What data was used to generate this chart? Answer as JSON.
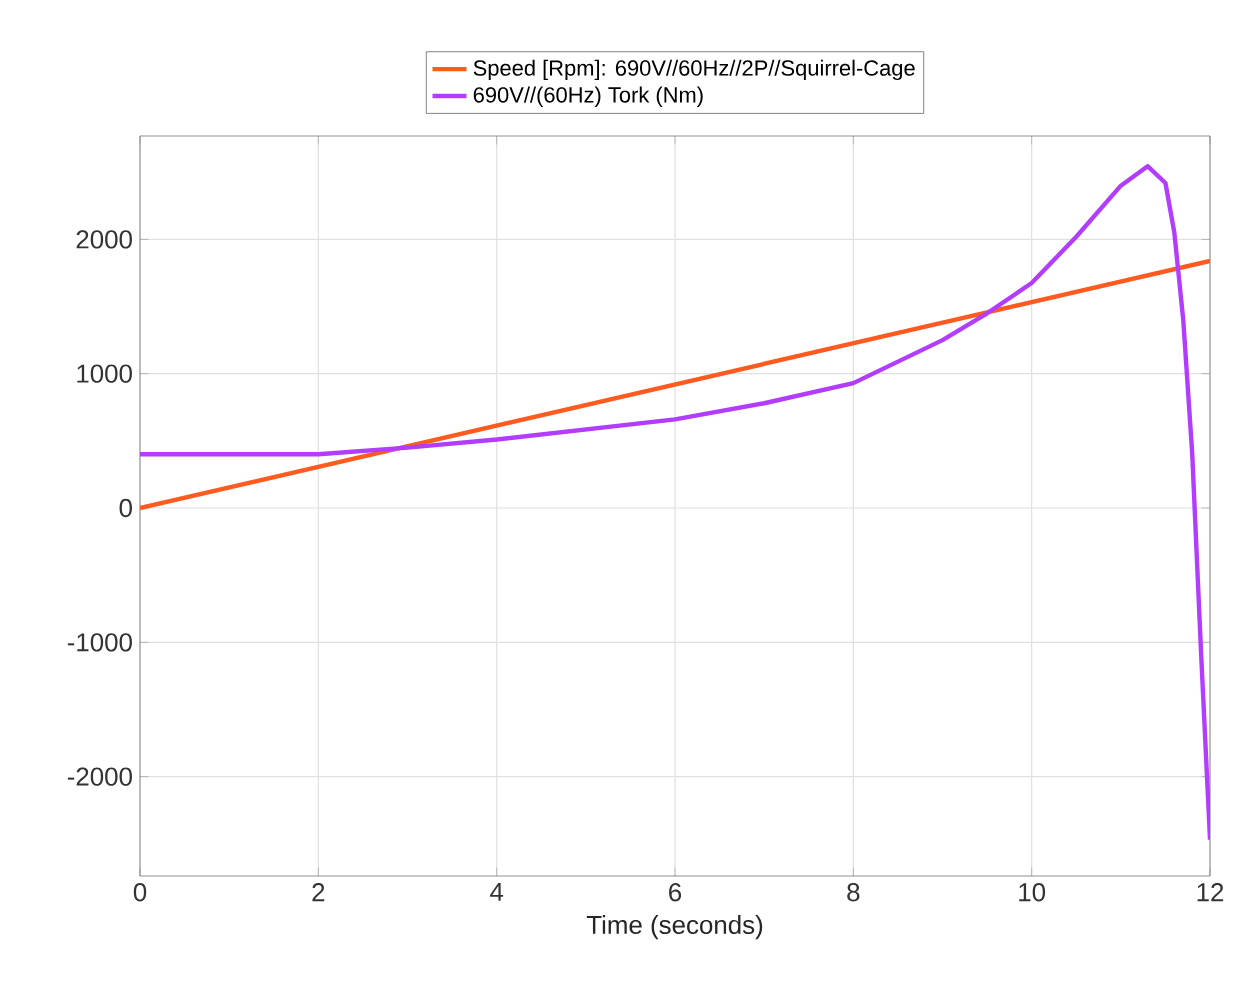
{
  "chart_data": {
    "type": "line",
    "xlabel": "Time (seconds)",
    "xlim": [
      0,
      12
    ],
    "xticks": [
      0,
      2,
      4,
      6,
      8,
      10,
      12
    ],
    "ylim": [
      -2740,
      2770
    ],
    "yticks": [
      -2000,
      -1000,
      0,
      1000,
      2000
    ],
    "grid": true,
    "legend": "top",
    "line_style": "solid",
    "marker": "none",
    "series": [
      {
        "name": "Speed [Rpm]: 690V//60Hz//2P//Squirrel-Cage",
        "color": "#ff5a1f",
        "x": [
          0,
          12
        ],
        "values": [
          0,
          1840
        ]
      },
      {
        "name": "690V//(60Hz) Tork (Nm)",
        "color": "#b23cff",
        "x": [
          0,
          2,
          3,
          4,
          6,
          7,
          8,
          9,
          9.5,
          10,
          10.5,
          11,
          11.3,
          11.5,
          11.6,
          11.7,
          11.8,
          11.9,
          12
        ],
        "values": [
          400,
          400,
          450,
          510,
          660,
          780,
          930,
          1250,
          1450,
          1675,
          2020,
          2400,
          2545,
          2420,
          2050,
          1400,
          410,
          -1080,
          -2470
        ]
      }
    ]
  }
}
